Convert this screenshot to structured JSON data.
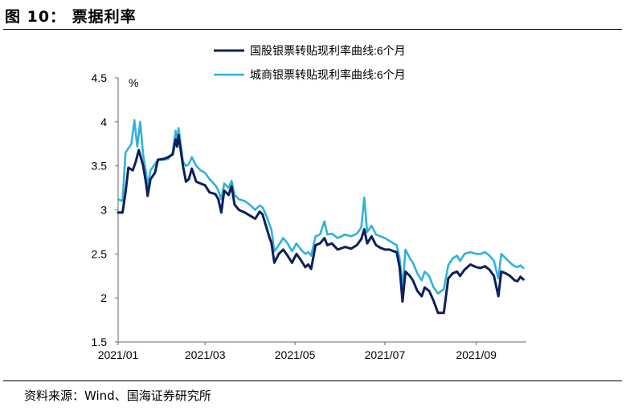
{
  "header": {
    "figure_title": "图 10： 票据利率"
  },
  "footer": {
    "source": "资料来源：Wind、国海证券研究所"
  },
  "colors": {
    "guogu": "#0d1f5c",
    "chengshang": "#2fb2dc",
    "axis": "#666666"
  },
  "chart_data": {
    "type": "line",
    "title": "",
    "xlabel": "",
    "ylabel": "%",
    "ylim": [
      1.5,
      4.5
    ],
    "yticks": [
      "1.5",
      "2",
      "2.5",
      "3",
      "3.5",
      "4",
      "4.5"
    ],
    "xlim": [
      "2021-01-01",
      "2021-10-05"
    ],
    "xticks": [
      {
        "date": "2021-01-01",
        "label": "2021/01"
      },
      {
        "date": "2021-03-01",
        "label": "2021/03"
      },
      {
        "date": "2021-05-01",
        "label": "2021/05"
      },
      {
        "date": "2021-07-01",
        "label": "2021/07"
      },
      {
        "date": "2021-09-01",
        "label": "2021/09"
      }
    ],
    "legend_position": "top",
    "series": [
      {
        "name": "国股银票转贴现利率曲线:6个月",
        "color": "#0d1f5c",
        "points": [
          [
            "2021-01-01",
            2.97
          ],
          [
            "2021-01-04",
            2.97
          ],
          [
            "2021-01-06",
            3.2
          ],
          [
            "2021-01-08",
            3.48
          ],
          [
            "2021-01-11",
            3.45
          ],
          [
            "2021-01-13",
            3.55
          ],
          [
            "2021-01-15",
            3.68
          ],
          [
            "2021-01-18",
            3.5
          ],
          [
            "2021-01-20",
            3.3
          ],
          [
            "2021-01-21",
            3.16
          ],
          [
            "2021-01-23",
            3.35
          ],
          [
            "2021-01-26",
            3.42
          ],
          [
            "2021-01-28",
            3.57
          ],
          [
            "2021-02-01",
            3.58
          ],
          [
            "2021-02-04",
            3.6
          ],
          [
            "2021-02-07",
            3.63
          ],
          [
            "2021-02-09",
            3.8
          ],
          [
            "2021-02-10",
            3.72
          ],
          [
            "2021-02-11",
            3.85
          ],
          [
            "2021-02-14",
            3.5
          ],
          [
            "2021-02-16",
            3.32
          ],
          [
            "2021-02-18",
            3.35
          ],
          [
            "2021-02-20",
            3.47
          ],
          [
            "2021-02-23",
            3.32
          ],
          [
            "2021-02-26",
            3.3
          ],
          [
            "2021-03-01",
            3.28
          ],
          [
            "2021-03-04",
            3.2
          ],
          [
            "2021-03-08",
            3.18
          ],
          [
            "2021-03-10",
            3.12
          ],
          [
            "2021-03-12",
            2.97
          ],
          [
            "2021-03-14",
            3.22
          ],
          [
            "2021-03-17",
            3.17
          ],
          [
            "2021-03-19",
            3.27
          ],
          [
            "2021-03-21",
            3.06
          ],
          [
            "2021-03-24",
            3.0
          ],
          [
            "2021-03-28",
            2.97
          ],
          [
            "2021-04-01",
            2.93
          ],
          [
            "2021-04-04",
            2.9
          ],
          [
            "2021-04-07",
            2.98
          ],
          [
            "2021-04-09",
            2.95
          ],
          [
            "2021-04-12",
            2.78
          ],
          [
            "2021-04-14",
            2.67
          ],
          [
            "2021-04-15",
            2.63
          ],
          [
            "2021-04-17",
            2.4
          ],
          [
            "2021-04-20",
            2.5
          ],
          [
            "2021-04-23",
            2.55
          ],
          [
            "2021-04-26",
            2.48
          ],
          [
            "2021-04-29",
            2.4
          ],
          [
            "2021-05-02",
            2.5
          ],
          [
            "2021-05-05",
            2.43
          ],
          [
            "2021-05-08",
            2.35
          ],
          [
            "2021-05-10",
            2.38
          ],
          [
            "2021-05-12",
            2.33
          ],
          [
            "2021-05-15",
            2.6
          ],
          [
            "2021-05-18",
            2.62
          ],
          [
            "2021-05-21",
            2.68
          ],
          [
            "2021-05-23",
            2.6
          ],
          [
            "2021-05-26",
            2.62
          ],
          [
            "2021-05-30",
            2.55
          ],
          [
            "2021-06-04",
            2.58
          ],
          [
            "2021-06-08",
            2.56
          ],
          [
            "2021-06-12",
            2.6
          ],
          [
            "2021-06-15",
            2.67
          ],
          [
            "2021-06-17",
            2.78
          ],
          [
            "2021-06-19",
            2.62
          ],
          [
            "2021-06-22",
            2.7
          ],
          [
            "2021-06-25",
            2.6
          ],
          [
            "2021-06-28",
            2.57
          ],
          [
            "2021-07-01",
            2.55
          ],
          [
            "2021-07-04",
            2.55
          ],
          [
            "2021-07-07",
            2.53
          ],
          [
            "2021-07-09",
            2.52
          ],
          [
            "2021-07-11",
            2.35
          ],
          [
            "2021-07-13",
            1.96
          ],
          [
            "2021-07-15",
            2.3
          ],
          [
            "2021-07-18",
            2.25
          ],
          [
            "2021-07-20",
            2.2
          ],
          [
            "2021-07-23",
            2.08
          ],
          [
            "2021-07-26",
            2.02
          ],
          [
            "2021-07-28",
            2.12
          ],
          [
            "2021-07-31",
            2.08
          ],
          [
            "2021-08-03",
            1.97
          ],
          [
            "2021-08-06",
            1.83
          ],
          [
            "2021-08-10",
            1.83
          ],
          [
            "2021-08-13",
            2.22
          ],
          [
            "2021-08-16",
            2.28
          ],
          [
            "2021-08-19",
            2.3
          ],
          [
            "2021-08-21",
            2.25
          ],
          [
            "2021-08-24",
            2.32
          ],
          [
            "2021-08-28",
            2.38
          ],
          [
            "2021-09-01",
            2.35
          ],
          [
            "2021-09-04",
            2.34
          ],
          [
            "2021-09-07",
            2.36
          ],
          [
            "2021-09-10",
            2.32
          ],
          [
            "2021-09-13",
            2.25
          ],
          [
            "2021-09-16",
            2.02
          ],
          [
            "2021-09-18",
            2.3
          ],
          [
            "2021-09-21",
            2.28
          ],
          [
            "2021-09-24",
            2.25
          ],
          [
            "2021-09-27",
            2.2
          ],
          [
            "2021-09-29",
            2.19
          ],
          [
            "2021-10-01",
            2.24
          ],
          [
            "2021-10-03",
            2.21
          ]
        ]
      },
      {
        "name": "城商银票转贴现利率曲线:6个月",
        "color": "#2fb2dc",
        "points": [
          [
            "2021-01-01",
            3.12
          ],
          [
            "2021-01-04",
            3.1
          ],
          [
            "2021-01-06",
            3.65
          ],
          [
            "2021-01-08",
            3.7
          ],
          [
            "2021-01-10",
            3.75
          ],
          [
            "2021-01-12",
            4.02
          ],
          [
            "2021-01-14",
            3.72
          ],
          [
            "2021-01-16",
            4.0
          ],
          [
            "2021-01-18",
            3.62
          ],
          [
            "2021-01-20",
            3.42
          ],
          [
            "2021-01-21",
            3.27
          ],
          [
            "2021-01-23",
            3.45
          ],
          [
            "2021-01-26",
            3.52
          ],
          [
            "2021-01-28",
            3.57
          ],
          [
            "2021-02-01",
            3.57
          ],
          [
            "2021-02-04",
            3.58
          ],
          [
            "2021-02-07",
            3.65
          ],
          [
            "2021-02-09",
            3.9
          ],
          [
            "2021-02-10",
            3.75
          ],
          [
            "2021-02-11",
            3.93
          ],
          [
            "2021-02-14",
            3.55
          ],
          [
            "2021-02-16",
            3.5
          ],
          [
            "2021-02-18",
            3.52
          ],
          [
            "2021-02-20",
            3.6
          ],
          [
            "2021-02-23",
            3.5
          ],
          [
            "2021-02-26",
            3.45
          ],
          [
            "2021-03-01",
            3.42
          ],
          [
            "2021-03-04",
            3.35
          ],
          [
            "2021-03-08",
            3.28
          ],
          [
            "2021-03-10",
            3.22
          ],
          [
            "2021-03-12",
            3.12
          ],
          [
            "2021-03-14",
            3.3
          ],
          [
            "2021-03-17",
            3.25
          ],
          [
            "2021-03-19",
            3.33
          ],
          [
            "2021-03-21",
            3.17
          ],
          [
            "2021-03-24",
            3.12
          ],
          [
            "2021-03-28",
            3.1
          ],
          [
            "2021-04-01",
            3.05
          ],
          [
            "2021-04-04",
            3.0
          ],
          [
            "2021-04-07",
            3.05
          ],
          [
            "2021-04-09",
            3.03
          ],
          [
            "2021-04-12",
            2.92
          ],
          [
            "2021-04-14",
            2.82
          ],
          [
            "2021-04-15",
            2.78
          ],
          [
            "2021-04-17",
            2.53
          ],
          [
            "2021-04-20",
            2.6
          ],
          [
            "2021-04-23",
            2.68
          ],
          [
            "2021-04-26",
            2.62
          ],
          [
            "2021-04-29",
            2.53
          ],
          [
            "2021-05-02",
            2.62
          ],
          [
            "2021-05-05",
            2.55
          ],
          [
            "2021-05-08",
            2.5
          ],
          [
            "2021-05-10",
            2.52
          ],
          [
            "2021-05-12",
            2.48
          ],
          [
            "2021-05-15",
            2.7
          ],
          [
            "2021-05-18",
            2.72
          ],
          [
            "2021-05-21",
            2.87
          ],
          [
            "2021-05-23",
            2.72
          ],
          [
            "2021-05-26",
            2.73
          ],
          [
            "2021-05-30",
            2.68
          ],
          [
            "2021-06-04",
            2.72
          ],
          [
            "2021-06-08",
            2.7
          ],
          [
            "2021-06-12",
            2.73
          ],
          [
            "2021-06-15",
            2.8
          ],
          [
            "2021-06-17",
            3.14
          ],
          [
            "2021-06-19",
            2.75
          ],
          [
            "2021-06-22",
            2.82
          ],
          [
            "2021-06-25",
            2.72
          ],
          [
            "2021-06-28",
            2.7
          ],
          [
            "2021-07-01",
            2.68
          ],
          [
            "2021-07-04",
            2.65
          ],
          [
            "2021-07-07",
            2.62
          ],
          [
            "2021-07-09",
            2.6
          ],
          [
            "2021-07-11",
            2.45
          ],
          [
            "2021-07-13",
            2.12
          ],
          [
            "2021-07-15",
            2.55
          ],
          [
            "2021-07-18",
            2.45
          ],
          [
            "2021-07-20",
            2.4
          ],
          [
            "2021-07-23",
            2.28
          ],
          [
            "2021-07-26",
            2.2
          ],
          [
            "2021-07-28",
            2.3
          ],
          [
            "2021-07-31",
            2.25
          ],
          [
            "2021-08-03",
            2.12
          ],
          [
            "2021-08-06",
            2.05
          ],
          [
            "2021-08-10",
            2.1
          ],
          [
            "2021-08-13",
            2.37
          ],
          [
            "2021-08-16",
            2.45
          ],
          [
            "2021-08-19",
            2.48
          ],
          [
            "2021-08-21",
            2.42
          ],
          [
            "2021-08-24",
            2.5
          ],
          [
            "2021-08-28",
            2.52
          ],
          [
            "2021-09-01",
            2.5
          ],
          [
            "2021-09-04",
            2.5
          ],
          [
            "2021-09-07",
            2.52
          ],
          [
            "2021-09-10",
            2.48
          ],
          [
            "2021-09-13",
            2.42
          ],
          [
            "2021-09-16",
            2.22
          ],
          [
            "2021-09-18",
            2.5
          ],
          [
            "2021-09-21",
            2.45
          ],
          [
            "2021-09-24",
            2.4
          ],
          [
            "2021-09-27",
            2.36
          ],
          [
            "2021-09-29",
            2.35
          ],
          [
            "2021-10-01",
            2.37
          ],
          [
            "2021-10-03",
            2.34
          ]
        ]
      }
    ]
  }
}
